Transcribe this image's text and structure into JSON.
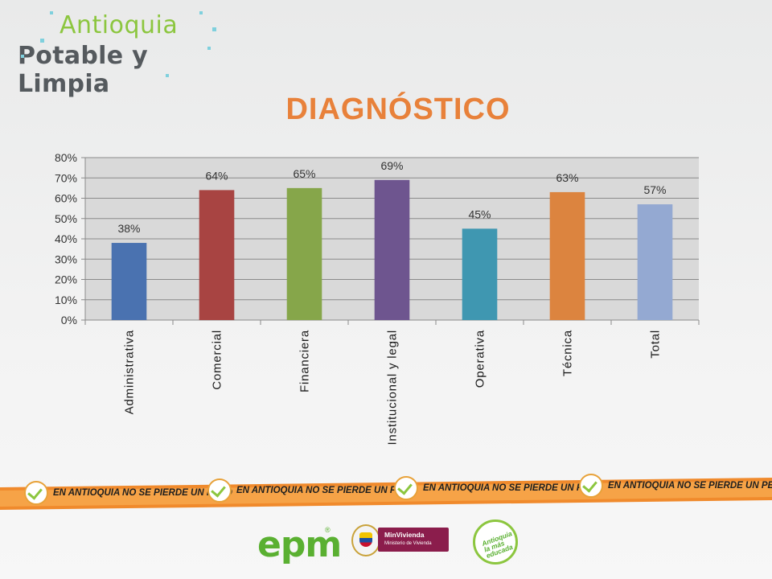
{
  "logo": {
    "line1": "Antioquia",
    "line2": "Potable y Limpia"
  },
  "title": "DIAGNÓSTICO",
  "banner_text": "EN ANTIOQUIA NO SE PIERDE UN PESO",
  "footer": {
    "epm": "epm",
    "epm_mark": "®",
    "minvivienda_title": "MinVivienda",
    "minvivienda_sub": "Ministerio de Vivienda",
    "educada": "Antioquia la más educada"
  },
  "chart_data": {
    "type": "bar",
    "categories": [
      "Administrativa",
      "Comercial",
      "Financiera",
      "Institucional y legal",
      "Operativa",
      "Técnica",
      "Total"
    ],
    "values": [
      0.38,
      0.64,
      0.65,
      0.69,
      0.45,
      0.63,
      0.57
    ],
    "data_labels": [
      "38%",
      "64%",
      "65%",
      "69%",
      "45%",
      "63%",
      "57%"
    ],
    "bar_colors": [
      "#4a72b0",
      "#a84442",
      "#86a64a",
      "#6e558f",
      "#3f97b1",
      "#dc843f",
      "#94a9d2"
    ],
    "ylim": [
      0,
      0.8
    ],
    "yticks": [
      0,
      0.1,
      0.2,
      0.3,
      0.4,
      0.5,
      0.6,
      0.7,
      0.8
    ],
    "ytick_labels": [
      "0%",
      "10%",
      "20%",
      "30%",
      "40%",
      "50%",
      "60%",
      "70%",
      "80%"
    ],
    "grid": true,
    "plot_background": "#d9d9d9",
    "xlabel": "",
    "ylabel": ""
  }
}
